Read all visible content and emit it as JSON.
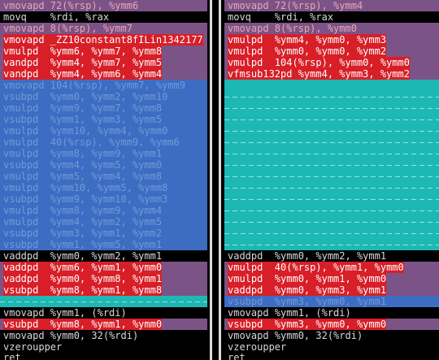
{
  "palette": {
    "black": "#000000",
    "mauve": "#7c5386",
    "blue": "#3d6dc2",
    "teal": "#1eb8b4",
    "highlight_red": "#d81e27",
    "text_gray": "#d8d8d8",
    "text_pink": "#e8a6b6"
  },
  "left": {
    "lines": [
      {
        "bg": "mauve",
        "cls": "c-pink",
        "hl": false,
        "text": "vmovapd 72(%rsp), %ymm6"
      },
      {
        "bg": "black",
        "cls": "c-gray",
        "hl": false,
        "text": "movq    %rdi, %rax"
      },
      {
        "bg": "mauve",
        "cls": "c-pink",
        "hl": false,
        "text": "vmovapd 8(%rsp), %ymm7"
      },
      {
        "bg": "mauve",
        "cls": "c-pink",
        "hl": true,
        "text": "vmovapd _ZZ10constant8fILin1342177"
      },
      {
        "bg": "mauve",
        "cls": "c-pink",
        "hl": true,
        "text": "vmulpd  %ymm6, %ymm7, %ymm8"
      },
      {
        "bg": "mauve",
        "cls": "c-pink",
        "hl": true,
        "text": "vandpd  %ymm4, %ymm7, %ymm5"
      },
      {
        "bg": "mauve",
        "cls": "c-pink",
        "hl": true,
        "text": "vandpd  %ymm4, %ymm6, %ymm4"
      },
      {
        "bg": "blue",
        "cls": "c-dimblue",
        "hl": false,
        "text": "vmovapd 104(%rsp), %ymm7, %ymm9"
      },
      {
        "bg": "blue",
        "cls": "c-dimblue",
        "hl": false,
        "text": "vsubpd  %ymm0, %ymm2, %ymm10"
      },
      {
        "bg": "blue",
        "cls": "c-dimblue",
        "hl": false,
        "text": "vmulpd  %ymm9, %ymm7, %ymm8"
      },
      {
        "bg": "blue",
        "cls": "c-dimblue",
        "hl": false,
        "text": "vsubpd  %ymm1, %ymm3, %ymm5"
      },
      {
        "bg": "blue",
        "cls": "c-dimblue",
        "hl": false,
        "text": "vmulpd  %ymm10, %ymm4, %ymm0"
      },
      {
        "bg": "blue",
        "cls": "c-dimblue",
        "hl": false,
        "text": "vmulpd  40(%rsp), %ymm9, %ymm6"
      },
      {
        "bg": "blue",
        "cls": "c-dimblue",
        "hl": false,
        "text": "vmulpd  %ymm8, %ymm9, %ymm1"
      },
      {
        "bg": "blue",
        "cls": "c-dimblue",
        "hl": false,
        "text": "vsubpd  %ymm4, %ymm5, %ymm0"
      },
      {
        "bg": "blue",
        "cls": "c-dimblue",
        "hl": false,
        "text": "vmulpd  %ymm5, %ymm4, %ymm8"
      },
      {
        "bg": "blue",
        "cls": "c-dimblue",
        "hl": false,
        "text": "vmulpd  %ymm10, %ymm5, %ymm8"
      },
      {
        "bg": "blue",
        "cls": "c-dimblue",
        "hl": false,
        "text": "vsubpd  %ymm9, %ymm10, %ymm3"
      },
      {
        "bg": "blue",
        "cls": "c-dimblue",
        "hl": false,
        "text": "vmulpd  %ymm8, %ymm9, %ymm4"
      },
      {
        "bg": "blue",
        "cls": "c-dimblue",
        "hl": false,
        "text": "vmulpd  %ymm4, %ymm2, %ymm5"
      },
      {
        "bg": "blue",
        "cls": "c-dimblue",
        "hl": false,
        "text": "vsubpd  %ymm3, %ymm1, %ymm2"
      },
      {
        "bg": "blue",
        "cls": "c-dimblue",
        "hl": false,
        "text": "vsubpd  %ymm1, %ymm5, %ymm1"
      },
      {
        "bg": "black",
        "cls": "c-gray",
        "hl": false,
        "text": "vaddpd  %ymm0, %ymm2, %ymm1"
      },
      {
        "bg": "mauve",
        "cls": "c-pink",
        "hl": true,
        "text": "vaddpd  %ymm6, %ymm1, %ymm0"
      },
      {
        "bg": "mauve",
        "cls": "c-pink",
        "hl": true,
        "text": "vaddpd  %ymm0, %ymm8, %ymm1"
      },
      {
        "bg": "mauve",
        "cls": "c-pink",
        "hl": true,
        "text": "vsubpd  %ymm8, %ymm1, %ymm8"
      },
      {
        "bg": "tealdash",
        "cls": "c-dimteal",
        "hl": false,
        "text": ""
      },
      {
        "bg": "black",
        "cls": "c-gray",
        "hl": false,
        "text": "vmovapd %ymm1, (%rdi)"
      },
      {
        "bg": "mauve",
        "cls": "c-pink",
        "hl": true,
        "text": "vsubpd  %ymm8, %ymm1, %ymm0"
      },
      {
        "bg": "black",
        "cls": "c-gray",
        "hl": false,
        "text": "vmovapd %ymm0, 32(%rdi)"
      },
      {
        "bg": "black",
        "cls": "c-gray",
        "hl": false,
        "text": "vzeroupper"
      },
      {
        "bg": "black",
        "cls": "c-gray",
        "hl": false,
        "text": "ret"
      }
    ]
  },
  "right": {
    "lines": [
      {
        "bg": "mauve",
        "cls": "c-pink",
        "hl": false,
        "text": "vmovapd 72(%rsp), %ymm4"
      },
      {
        "bg": "black",
        "cls": "c-gray",
        "hl": false,
        "text": "movq    %rdi, %rax"
      },
      {
        "bg": "mauve",
        "cls": "c-pink",
        "hl": false,
        "text": "vmovapd 8(%rsp), %ymm0"
      },
      {
        "bg": "mauve",
        "cls": "c-pink",
        "hl": true,
        "text": "vmulpd  %ymm4, %ymm0, %ymm3"
      },
      {
        "bg": "mauve",
        "cls": "c-pink",
        "hl": true,
        "text": "vmulpd  %ymm0, %ymm0, %ymm2"
      },
      {
        "bg": "mauve",
        "cls": "c-pink",
        "hl": true,
        "text": "vmulpd  104(%rsp), %ymm0, %ymm0"
      },
      {
        "bg": "mauve",
        "cls": "c-pink",
        "hl": true,
        "text": "vfmsub132pd %ymm4, %ymm3, %ymm2"
      },
      {
        "bg": "teal",
        "cls": "c-dimteal",
        "hl": false,
        "text": ""
      },
      {
        "bg": "tealdash",
        "cls": "c-dimteal",
        "hl": false,
        "text": ""
      },
      {
        "bg": "tealdash",
        "cls": "c-dimteal",
        "hl": false,
        "text": ""
      },
      {
        "bg": "tealdash",
        "cls": "c-dimteal",
        "hl": false,
        "text": ""
      },
      {
        "bg": "tealdash",
        "cls": "c-dimteal",
        "hl": false,
        "text": ""
      },
      {
        "bg": "tealdash",
        "cls": "c-dimteal",
        "hl": false,
        "text": ""
      },
      {
        "bg": "tealdash",
        "cls": "c-dimteal",
        "hl": false,
        "text": ""
      },
      {
        "bg": "tealdash",
        "cls": "c-dimteal",
        "hl": false,
        "text": ""
      },
      {
        "bg": "tealdash",
        "cls": "c-dimteal",
        "hl": false,
        "text": ""
      },
      {
        "bg": "tealdash",
        "cls": "c-dimteal",
        "hl": false,
        "text": ""
      },
      {
        "bg": "tealdash",
        "cls": "c-dimteal",
        "hl": false,
        "text": ""
      },
      {
        "bg": "tealdash",
        "cls": "c-dimteal",
        "hl": false,
        "text": ""
      },
      {
        "bg": "tealdash",
        "cls": "c-dimteal",
        "hl": false,
        "text": ""
      },
      {
        "bg": "tealdash",
        "cls": "c-dimteal",
        "hl": false,
        "text": ""
      },
      {
        "bg": "tealdash",
        "cls": "c-dimteal",
        "hl": false,
        "text": ""
      },
      {
        "bg": "black",
        "cls": "c-gray",
        "hl": false,
        "text": "vaddpd  %ymm0, %ymm2, %ymm1"
      },
      {
        "bg": "mauve",
        "cls": "c-pink",
        "hl": true,
        "text": "vmulpd  40(%rsp), %ymm1, %ymm0"
      },
      {
        "bg": "mauve",
        "cls": "c-pink",
        "hl": true,
        "text": "vmulpd  %ymm0, %ymm1, %ymm0"
      },
      {
        "bg": "mauve",
        "cls": "c-pink",
        "hl": true,
        "text": "vaddpd  %ymm0, %ymm3, %ymm1"
      },
      {
        "bg": "blue",
        "cls": "c-dimblue",
        "hl": false,
        "text": "vsubpd  %ymm3, %ymm0, %ymm1"
      },
      {
        "bg": "black",
        "cls": "c-gray",
        "hl": false,
        "text": "vmovapd %ymm1, (%rdi)"
      },
      {
        "bg": "mauve",
        "cls": "c-pink",
        "hl": true,
        "text": "vsubpd  %ymm3, %ymm0, %ymm0"
      },
      {
        "bg": "black",
        "cls": "c-gray",
        "hl": false,
        "text": "vmovapd %ymm0, 32(%rdi)"
      },
      {
        "bg": "black",
        "cls": "c-gray",
        "hl": false,
        "text": "vzeroupper"
      },
      {
        "bg": "black",
        "cls": "c-gray",
        "hl": false,
        "text": "ret"
      }
    ]
  }
}
